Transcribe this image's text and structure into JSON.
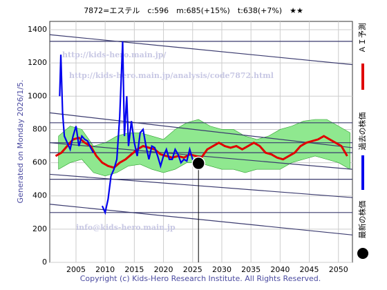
{
  "chart_data": {
    "type": "line",
    "title": "7872=エステル　c:596　m:685(+15%)　t:638(+7%)　★★",
    "ylabel": "Generated on Monday 2026/1/5.",
    "footer": "Copyright (c) Kids-Hero Research Institute. All Rights Reserved.",
    "watermarks": [
      "http://kids-hero.main.jp/",
      "http://kids-hero.main.jp/analysis/code7872.html",
      "info@kids-hero.main.jp"
    ],
    "xlim": [
      2000.5,
      2052.4
    ],
    "ylim": [
      0,
      1450
    ],
    "xticks": [
      2005,
      2010,
      2015,
      2020,
      2025,
      2030,
      2035,
      2040,
      2045,
      2050
    ],
    "yticks": [
      0,
      200,
      400,
      600,
      800,
      1000,
      1200,
      1400
    ],
    "grid": true,
    "levels": [
      300,
      500,
      660,
      720,
      840,
      1330
    ],
    "trend_lines": [
      {
        "start": 1370,
        "end": 1190
      },
      {
        "start": 900,
        "end": 690
      },
      {
        "start": 720,
        "end": 560
      },
      {
        "start": 530,
        "end": 390
      },
      {
        "start": 350,
        "end": 165
      }
    ],
    "band": {
      "color": "#8fe88f",
      "x": [
        2002,
        2004,
        2006,
        2008,
        2010,
        2012,
        2014,
        2016,
        2018,
        2020,
        2022,
        2024,
        2026,
        2028,
        2030,
        2032,
        2034,
        2036,
        2038,
        2040,
        2042,
        2044,
        2046,
        2048,
        2050,
        2052
      ],
      "upper": [
        760,
        820,
        800,
        700,
        720,
        760,
        780,
        780,
        760,
        740,
        800,
        840,
        860,
        820,
        800,
        800,
        760,
        740,
        760,
        800,
        820,
        850,
        860,
        860,
        820,
        780
      ],
      "lower": [
        560,
        600,
        620,
        540,
        520,
        540,
        580,
        590,
        560,
        540,
        560,
        600,
        600,
        580,
        560,
        560,
        540,
        560,
        560,
        560,
        600,
        620,
        640,
        620,
        600,
        560
      ]
    },
    "series": [
      {
        "name": "ＡＩ予測",
        "color": "#e00000",
        "x": [
          2001.5,
          2002.5,
          2003.5,
          2004.5,
          2005.5,
          2006.5,
          2007.5,
          2008.5,
          2009.5,
          2010.5,
          2011.5,
          2012.5,
          2013.5,
          2014.5,
          2015.5,
          2016.5,
          2017.5,
          2018.5,
          2019.5,
          2020.5,
          2021.5,
          2022.5,
          2023.5,
          2024.5,
          2025.5,
          2026.5,
          2027.5,
          2028.5,
          2029.5,
          2030.5,
          2031.5,
          2032.5,
          2033.5,
          2034.5,
          2035.5,
          2036.5,
          2037.5,
          2038.5,
          2039.5,
          2040.5,
          2041.5,
          2042.5,
          2043.5,
          2044.5,
          2045.5,
          2046.5,
          2047.5,
          2048.5,
          2049.5,
          2050.5,
          2051.5
        ],
        "values": [
          640,
          660,
          700,
          740,
          750,
          720,
          700,
          640,
          600,
          580,
          570,
          600,
          620,
          650,
          680,
          700,
          690,
          680,
          650,
          640,
          630,
          640,
          630,
          650,
          640,
          630,
          680,
          700,
          720,
          700,
          690,
          700,
          680,
          700,
          720,
          700,
          660,
          650,
          630,
          620,
          640,
          660,
          700,
          720,
          730,
          740,
          760,
          740,
          720,
          700,
          640
        ]
      },
      {
        "name": "過去の株価",
        "color": "#0000ee",
        "x": [
          2002.2,
          2002.4,
          2002.7,
          2003,
          2003.5,
          2004,
          2004.5,
          2005,
          2005.5,
          2006,
          2006.5,
          2007,
          2007.5,
          2008,
          2008.7,
          2009.5,
          2010,
          2010.5,
          2011,
          2011.5,
          2012,
          2012.5,
          2013,
          2013.3,
          2013.7,
          2014,
          2014.5,
          2015,
          2015.5,
          2016,
          2016.5,
          2017,
          2017.5,
          2018,
          2018.5,
          2019,
          2019.5,
          2020,
          2020.5,
          2021,
          2021.5,
          2022,
          2022.5,
          2023,
          2023.5,
          2024,
          2024.5,
          2025,
          2025.5
        ],
        "values": [
          1000,
          1250,
          900,
          760,
          720,
          680,
          760,
          820,
          700,
          760,
          740,
          730,
          690,
          660,
          null,
          340,
          300,
          380,
          520,
          560,
          620,
          880,
          1330,
          760,
          1000,
          700,
          850,
          720,
          640,
          780,
          800,
          700,
          620,
          700,
          690,
          640,
          580,
          640,
          680,
          620,
          620,
          680,
          650,
          600,
          620,
          610,
          680,
          620,
          600
        ]
      }
    ],
    "latest": {
      "name": "最新の株価",
      "x": 2026,
      "value": 596,
      "color": "#000000"
    }
  }
}
